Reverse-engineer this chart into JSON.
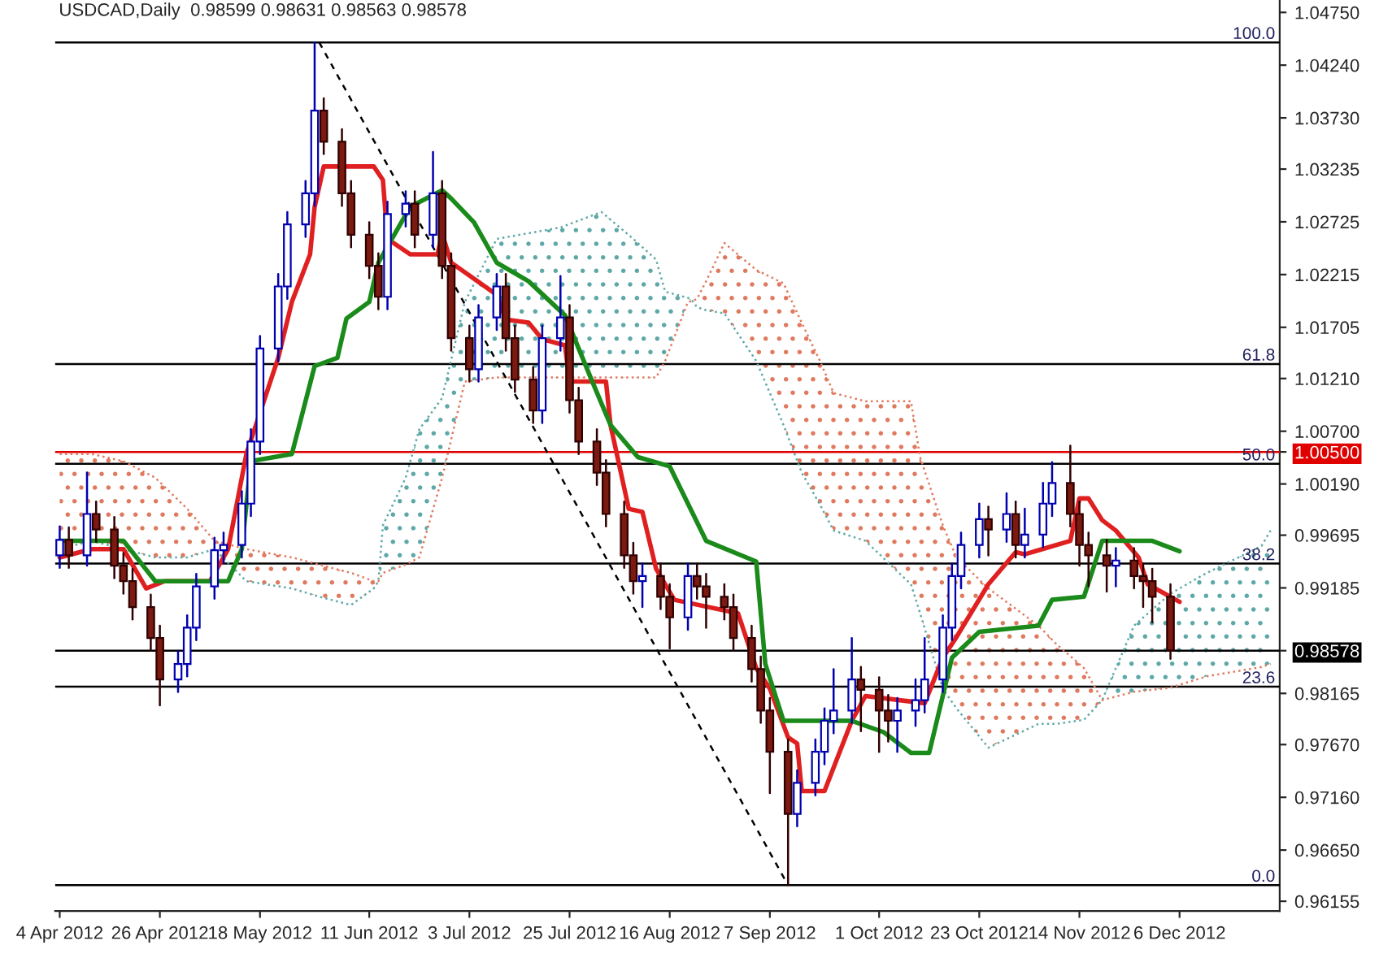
{
  "chart_data": {
    "type": "candlestick",
    "title": "USDCAD,Daily  0.98599 0.98631 0.98563 0.98578",
    "x": [
      "2012-04-04",
      "2012-04-06",
      "2012-04-10",
      "2012-04-12",
      "2012-04-16",
      "2012-04-18",
      "2012-04-20",
      "2012-04-24",
      "2012-04-26",
      "2012-04-30",
      "2012-05-02",
      "2012-05-04",
      "2012-05-08",
      "2012-05-10",
      "2012-05-14",
      "2012-05-16",
      "2012-05-18",
      "2012-05-22",
      "2012-05-24",
      "2012-05-28",
      "2012-05-30",
      "2012-06-01",
      "2012-06-05",
      "2012-06-07",
      "2012-06-11",
      "2012-06-13",
      "2012-06-15",
      "2012-06-19",
      "2012-06-21",
      "2012-06-25",
      "2012-06-27",
      "2012-06-29",
      "2012-07-03",
      "2012-07-05",
      "2012-07-09",
      "2012-07-11",
      "2012-07-13",
      "2012-07-17",
      "2012-07-19",
      "2012-07-23",
      "2012-07-25",
      "2012-07-27",
      "2012-07-31",
      "2012-08-02",
      "2012-08-06",
      "2012-08-08",
      "2012-08-10",
      "2012-08-14",
      "2012-08-16",
      "2012-08-20",
      "2012-08-22",
      "2012-08-24",
      "2012-08-28",
      "2012-08-30",
      "2012-09-03",
      "2012-09-05",
      "2012-09-07",
      "2012-09-11",
      "2012-09-13",
      "2012-09-17",
      "2012-09-19",
      "2012-09-21",
      "2012-09-25",
      "2012-09-27",
      "2012-10-01",
      "2012-10-03",
      "2012-10-05",
      "2012-10-09",
      "2012-10-11",
      "2012-10-15",
      "2012-10-17",
      "2012-10-19",
      "2012-10-23",
      "2012-10-25",
      "2012-10-29",
      "2012-10-31",
      "2012-11-02",
      "2012-11-06",
      "2012-11-08",
      "2012-11-12",
      "2012-11-14",
      "2012-11-16",
      "2012-11-20",
      "2012-11-22",
      "2012-11-26",
      "2012-11-28",
      "2012-11-30",
      "2012-12-04"
    ],
    "ohlc": [
      [
        0.995,
        0.9978,
        0.9938,
        0.9965
      ],
      [
        0.9965,
        0.9977,
        0.9938,
        0.995
      ],
      [
        0.995,
        1.003,
        0.994,
        0.999
      ],
      [
        0.999,
        1.0002,
        0.9963,
        0.9975
      ],
      [
        0.9975,
        0.9987,
        0.9928,
        0.994
      ],
      [
        0.994,
        0.9952,
        0.9913,
        0.9925
      ],
      [
        0.9925,
        0.9937,
        0.9888,
        0.99
      ],
      [
        0.99,
        0.9912,
        0.9858,
        0.987
      ],
      [
        0.987,
        0.9882,
        0.9805,
        0.983
      ],
      [
        0.983,
        0.9857,
        0.9818,
        0.9845
      ],
      [
        0.9845,
        0.9892,
        0.9833,
        0.988
      ],
      [
        0.988,
        0.9932,
        0.9868,
        0.992
      ],
      [
        0.992,
        0.9967,
        0.9908,
        0.9955
      ],
      [
        0.9955,
        0.9972,
        0.9943,
        0.996
      ],
      [
        0.996,
        1.0012,
        0.9948,
        1.0
      ],
      [
        1.0,
        1.0072,
        0.9988,
        1.006
      ],
      [
        1.006,
        1.0162,
        1.0048,
        1.015
      ],
      [
        1.015,
        1.0222,
        1.0138,
        1.021
      ],
      [
        1.021,
        1.0282,
        1.0198,
        1.027
      ],
      [
        1.027,
        1.0312,
        1.0258,
        1.03
      ],
      [
        1.03,
        1.0446,
        1.0288,
        1.038
      ],
      [
        1.038,
        1.0392,
        1.0338,
        1.035
      ],
      [
        1.035,
        1.0362,
        1.0288,
        1.03
      ],
      [
        1.03,
        1.0312,
        1.0248,
        1.026
      ],
      [
        1.026,
        1.0272,
        1.0218,
        1.023
      ],
      [
        1.023,
        1.0242,
        1.0188,
        1.02
      ],
      [
        1.02,
        1.0292,
        1.0188,
        1.028
      ],
      [
        1.028,
        1.0302,
        1.0268,
        1.029
      ],
      [
        1.029,
        1.0302,
        1.0248,
        1.026
      ],
      [
        1.026,
        1.034,
        1.0248,
        1.03
      ],
      [
        1.03,
        1.0312,
        1.0218,
        1.023
      ],
      [
        1.023,
        1.0242,
        1.0148,
        1.016
      ],
      [
        1.016,
        1.0172,
        1.0118,
        1.013
      ],
      [
        1.013,
        1.0192,
        1.0118,
        1.018
      ],
      [
        1.018,
        1.0222,
        1.0168,
        1.021
      ],
      [
        1.021,
        1.0222,
        1.0148,
        1.016
      ],
      [
        1.016,
        1.0172,
        1.0108,
        1.012
      ],
      [
        1.012,
        1.0132,
        1.0078,
        1.009
      ],
      [
        1.009,
        1.0172,
        1.0078,
        1.016
      ],
      [
        1.016,
        1.022,
        1.0148,
        1.018
      ],
      [
        1.018,
        1.0192,
        1.0088,
        1.01
      ],
      [
        1.01,
        1.0112,
        1.0048,
        1.006
      ],
      [
        1.006,
        1.0072,
        1.0018,
        1.003
      ],
      [
        1.003,
        1.0042,
        0.9978,
        0.999
      ],
      [
        0.999,
        1.0002,
        0.9938,
        0.995
      ],
      [
        0.995,
        0.9962,
        0.9913,
        0.9925
      ],
      [
        0.9925,
        0.9942,
        0.99,
        0.993
      ],
      [
        0.993,
        0.9942,
        0.9898,
        0.991
      ],
      [
        0.991,
        0.9922,
        0.986,
        0.989
      ],
      [
        0.989,
        0.9942,
        0.9878,
        0.993
      ],
      [
        0.993,
        0.9942,
        0.9908,
        0.992
      ],
      [
        0.992,
        0.9932,
        0.988,
        0.991
      ],
      [
        0.991,
        0.9922,
        0.9888,
        0.99
      ],
      [
        0.99,
        0.9912,
        0.9858,
        0.987
      ],
      [
        0.987,
        0.9882,
        0.9828,
        0.984
      ],
      [
        0.984,
        0.9852,
        0.9788,
        0.98
      ],
      [
        0.98,
        0.9812,
        0.972,
        0.976
      ],
      [
        0.976,
        0.9772,
        0.9631,
        0.97
      ],
      [
        0.97,
        0.9742,
        0.9688,
        0.973
      ],
      [
        0.973,
        0.9772,
        0.9718,
        0.976
      ],
      [
        0.976,
        0.9802,
        0.9748,
        0.979
      ],
      [
        0.979,
        0.984,
        0.9778,
        0.98
      ],
      [
        0.98,
        0.987,
        0.9788,
        0.983
      ],
      [
        0.983,
        0.9842,
        0.978,
        0.982
      ],
      [
        0.982,
        0.9832,
        0.976,
        0.98
      ],
      [
        0.98,
        0.9815,
        0.977,
        0.979
      ],
      [
        0.979,
        0.9812,
        0.976,
        0.98
      ],
      [
        0.98,
        0.983,
        0.9785,
        0.981
      ],
      [
        0.981,
        0.987,
        0.9798,
        0.983
      ],
      [
        0.983,
        0.9892,
        0.9818,
        0.988
      ],
      [
        0.988,
        0.9942,
        0.9868,
        0.993
      ],
      [
        0.993,
        0.9972,
        0.9918,
        0.996
      ],
      [
        0.996,
        1.0,
        0.9948,
        0.9985
      ],
      [
        0.9985,
        0.9997,
        0.995,
        0.9975
      ],
      [
        0.9975,
        1.001,
        0.9963,
        0.999
      ],
      [
        0.999,
        1.0002,
        0.9948,
        0.996
      ],
      [
        0.996,
        0.9995,
        0.9948,
        0.997
      ],
      [
        0.997,
        1.002,
        0.9958,
        1.0
      ],
      [
        1.0,
        1.004,
        0.9988,
        1.002
      ],
      [
        1.002,
        1.0056,
        0.9978,
        0.999
      ],
      [
        0.999,
        1.0002,
        0.994,
        0.996
      ],
      [
        0.996,
        0.9972,
        0.992,
        0.995
      ],
      [
        0.995,
        0.9965,
        0.9915,
        0.994
      ],
      [
        0.994,
        0.9957,
        0.992,
        0.9945
      ],
      [
        0.9945,
        0.9957,
        0.9918,
        0.993
      ],
      [
        0.993,
        0.9942,
        0.99,
        0.9925
      ],
      [
        0.9925,
        0.9937,
        0.9885,
        0.991
      ],
      [
        0.991,
        0.9922,
        0.985,
        0.9858
      ]
    ],
    "series": [
      {
        "type": "line",
        "line_style": "dotted",
        "color": "#5fa8a8",
        "x": [
          "2012-04-04",
          "2012-04-11",
          "2012-04-18",
          "2012-04-25",
          "2012-05-02",
          "2012-05-08",
          "2012-05-15",
          "2012-05-25",
          "2012-05-31",
          "2012-06-07",
          "2012-06-12",
          "2012-06-13",
          "2012-06-14",
          "2012-06-19",
          "2012-06-22",
          "2012-06-27",
          "2012-07-02",
          "2012-07-09",
          "2012-07-23",
          "2012-08-01",
          "2012-08-08",
          "2012-08-13",
          "2012-08-15",
          "2012-08-20",
          "2012-08-21",
          "2012-08-22",
          "2012-08-24",
          "2012-08-28",
          "2012-09-04",
          "2012-09-10",
          "2012-09-14",
          "2012-09-18",
          "2012-09-21",
          "2012-09-28",
          "2012-10-08",
          "2012-10-10",
          "2012-10-15",
          "2012-10-18",
          "2012-10-25",
          "2012-11-05",
          "2012-11-09",
          "2012-11-15",
          "2012-11-19",
          "2012-11-26",
          "2012-12-04",
          "2012-12-12",
          "2012-12-24",
          "2012-12-26"
        ],
        "values": [
          0.9956,
          0.9964,
          0.9956,
          0.9948,
          0.9948,
          0.9956,
          0.9925,
          0.9918,
          0.991,
          0.9902,
          0.9918,
          0.9925,
          0.9979,
          1.0025,
          1.0072,
          1.0102,
          1.0195,
          1.0256,
          1.0267,
          1.0282,
          1.0256,
          1.0236,
          1.0205,
          1.0199,
          1.0196,
          1.019,
          1.0187,
          1.0184,
          1.0138,
          1.0076,
          1.003,
          0.9999,
          0.9974,
          0.9964,
          0.9922,
          0.9894,
          0.9821,
          0.9802,
          0.9764,
          0.9787,
          0.9787,
          0.9791,
          0.981,
          0.9882,
          0.9913,
          0.9933,
          0.9959,
          0.9974
        ],
        "upper": [
          null,
          null,
          null,
          null,
          null,
          null,
          null,
          null,
          null,
          null,
          null,
          0.9925,
          0.9979,
          1.0025,
          1.0072,
          1.0102,
          1.0195,
          1.0256,
          1.0267,
          1.0282,
          1.0256,
          1.0236,
          1.0205,
          1.0199,
          1.0196,
          null,
          null,
          null,
          null,
          null,
          null,
          null,
          null,
          null,
          null,
          null,
          null,
          null,
          null,
          null,
          null,
          null,
          0.981,
          0.9882,
          0.9913,
          0.9933,
          0.9959,
          0.9974
        ],
        "lower": [
          null,
          null,
          null,
          null,
          null,
          null,
          null,
          null,
          null,
          null,
          null,
          0.9925,
          0.9933,
          0.9941,
          0.9948,
          1.0025,
          1.0118,
          1.0122,
          1.0122,
          1.0122,
          1.0122,
          1.0122,
          1.0138,
          1.0195,
          1.0196,
          null,
          null,
          null,
          null,
          null,
          null,
          null,
          null,
          null,
          null,
          null,
          null,
          null,
          null,
          null,
          null,
          null,
          0.981,
          0.9818,
          0.9822,
          0.9833,
          0.9842,
          0.9845
        ]
      },
      {
        "type": "line",
        "line_style": "dotted",
        "color": "#e07a5f",
        "x": [
          "2012-04-04",
          "2012-04-11",
          "2012-04-18",
          "2012-04-25",
          "2012-05-02",
          "2012-05-08",
          "2012-05-15",
          "2012-05-25",
          "2012-05-31",
          "2012-06-07",
          "2012-06-12",
          "2012-06-13",
          "2012-06-14",
          "2012-06-19",
          "2012-06-22",
          "2012-06-27",
          "2012-07-02",
          "2012-07-09",
          "2012-07-23",
          "2012-08-01",
          "2012-08-08",
          "2012-08-13",
          "2012-08-15",
          "2012-08-20",
          "2012-08-21",
          "2012-08-22",
          "2012-08-24",
          "2012-08-28",
          "2012-09-04",
          "2012-09-10",
          "2012-09-14",
          "2012-09-18",
          "2012-09-21",
          "2012-09-28",
          "2012-10-08",
          "2012-10-10",
          "2012-10-15",
          "2012-10-18",
          "2012-10-25",
          "2012-11-05",
          "2012-11-09",
          "2012-11-15",
          "2012-11-19",
          "2012-11-26",
          "2012-12-04",
          "2012-12-12",
          "2012-12-24",
          "2012-12-26"
        ],
        "values": [
          1.0048,
          1.0048,
          1.0041,
          1.0025,
          0.9995,
          0.9964,
          0.9956,
          0.9948,
          0.9941,
          0.9933,
          0.9925,
          0.9925,
          0.9933,
          0.9941,
          0.9948,
          1.0025,
          1.0118,
          1.0122,
          1.0122,
          1.0122,
          1.0122,
          1.0122,
          1.0138,
          1.0195,
          1.0196,
          1.0198,
          1.0215,
          1.0252,
          1.0226,
          1.0213,
          1.0175,
          1.0138,
          1.0107,
          1.0099,
          1.0099,
          1.0045,
          0.9979,
          0.9948,
          0.9918,
          0.9882,
          0.9864,
          0.9841,
          0.981,
          0.9818,
          0.9822,
          0.9833,
          0.9842,
          0.9845
        ],
        "upper": [
          1.0048,
          1.0048,
          1.0041,
          1.0025,
          0.9995,
          0.9964,
          0.9956,
          0.9948,
          0.9941,
          0.9933,
          0.9925,
          0.9925,
          null,
          null,
          null,
          null,
          null,
          null,
          null,
          null,
          null,
          null,
          null,
          null,
          1.0196,
          1.0198,
          1.0215,
          1.0252,
          1.0226,
          1.0213,
          1.0175,
          1.0138,
          1.0107,
          1.0099,
          1.0099,
          1.0045,
          0.9979,
          0.9948,
          0.9918,
          0.9882,
          0.9864,
          0.9841,
          0.981,
          null,
          null,
          null,
          null,
          null
        ],
        "lower": [
          0.9956,
          0.9964,
          0.9956,
          0.9948,
          0.9948,
          0.9956,
          0.9925,
          0.9918,
          0.991,
          0.9902,
          0.9918,
          0.9925,
          null,
          null,
          null,
          null,
          null,
          null,
          null,
          null,
          null,
          null,
          null,
          null,
          1.0196,
          1.019,
          1.0187,
          1.0184,
          1.0138,
          1.0076,
          1.003,
          0.9999,
          0.9974,
          0.9964,
          0.9922,
          0.9894,
          0.9821,
          0.9802,
          0.9764,
          0.9787,
          0.9787,
          0.9791,
          0.981,
          null,
          null,
          null,
          null,
          null
        ]
      },
      {
        "type": "line",
        "color": "#e02020",
        "line_style": "solid",
        "x": [
          "2012-04-04",
          "2012-04-11",
          "2012-04-18",
          "2012-04-23",
          "2012-04-27",
          "2012-05-07",
          "2012-05-11",
          "2012-05-15",
          "2012-05-22",
          "2012-05-25",
          "2012-05-29",
          "2012-05-30",
          "2012-06-01",
          "2012-06-12",
          "2012-06-14",
          "2012-06-15",
          "2012-06-20",
          "2012-06-26",
          "2012-06-27",
          "2012-06-29",
          "2012-07-09",
          "2012-07-11",
          "2012-07-16",
          "2012-07-19",
          "2012-07-24",
          "2012-07-25",
          "2012-07-30",
          "2012-08-02",
          "2012-08-03",
          "2012-08-07",
          "2012-08-10",
          "2012-08-13",
          "2012-08-17",
          "2012-08-31",
          "2012-09-04",
          "2012-09-07",
          "2012-09-11",
          "2012-09-13",
          "2012-09-14",
          "2012-09-19",
          "2012-09-25",
          "2012-09-28",
          "2012-10-11",
          "2012-10-15",
          "2012-10-18",
          "2012-10-25",
          "2012-10-31",
          "2012-11-02",
          "2012-11-12",
          "2012-11-14",
          "2012-11-16",
          "2012-11-19",
          "2012-11-22",
          "2012-11-27",
          "2012-11-29",
          "2012-12-06"
        ],
        "values": [
          0.9948,
          0.9956,
          0.9956,
          0.9918,
          0.9925,
          0.9925,
          0.9956,
          1.0048,
          1.0141,
          1.0195,
          1.0241,
          1.0287,
          1.0326,
          1.0326,
          1.0313,
          1.0256,
          1.0241,
          1.0241,
          1.0261,
          1.0233,
          1.0202,
          1.0178,
          1.0175,
          1.0159,
          1.0153,
          1.0118,
          1.0118,
          1.0118,
          1.0076,
          0.9995,
          0.9992,
          0.9937,
          0.9907,
          0.9894,
          0.9841,
          0.9821,
          0.9774,
          0.9768,
          0.9722,
          0.9722,
          0.979,
          0.9814,
          0.9807,
          0.9851,
          0.9871,
          0.9922,
          0.9953,
          0.9951,
          0.9964,
          1.0005,
          1.0005,
          0.9984,
          0.9974,
          0.9948,
          0.9922,
          0.9905
        ]
      },
      {
        "type": "line",
        "color": "#1a8a1a",
        "line_style": "solid",
        "x": [
          "2012-04-04",
          "2012-04-18",
          "2012-04-25",
          "2012-05-11",
          "2012-05-14",
          "2012-05-16",
          "2012-05-25",
          "2012-05-30",
          "2012-06-04",
          "2012-06-06",
          "2012-06-11",
          "2012-06-13",
          "2012-06-20",
          "2012-06-27",
          "2012-06-29",
          "2012-07-04",
          "2012-07-09",
          "2012-07-16",
          "2012-07-24",
          "2012-07-30",
          "2012-08-03",
          "2012-08-09",
          "2012-08-16",
          "2012-08-24",
          "2012-09-04",
          "2012-09-06",
          "2012-09-10",
          "2012-09-25",
          "2012-10-02",
          "2012-10-08",
          "2012-10-12",
          "2012-10-17",
          "2012-10-23",
          "2012-11-05",
          "2012-11-08",
          "2012-11-15",
          "2012-11-19",
          "2012-11-30",
          "2012-12-06"
        ],
        "values": [
          0.9964,
          0.9964,
          0.9925,
          0.9925,
          0.9956,
          1.0041,
          1.0048,
          1.0133,
          1.0141,
          1.0179,
          1.0195,
          1.0233,
          1.0287,
          1.0303,
          1.0295,
          1.0272,
          1.0233,
          1.0215,
          1.0182,
          1.0118,
          1.0076,
          1.0045,
          1.0036,
          0.9964,
          0.9944,
          0.9845,
          0.979,
          0.979,
          0.9779,
          0.9759,
          0.9759,
          0.9851,
          0.9876,
          0.9882,
          0.9907,
          0.991,
          0.9964,
          0.9964,
          0.9954
        ]
      },
      {
        "type": "line",
        "color": "#000000",
        "line_style": "dashed",
        "x": [
          "2012-05-31",
          "2012-09-11"
        ],
        "values": [
          1.0446,
          0.9631
        ]
      }
    ],
    "ref_lines": [
      {
        "axis": "y",
        "value": 1.0446,
        "color": "#000000"
      },
      {
        "axis": "y",
        "value": 1.0135,
        "color": "#000000"
      },
      {
        "axis": "y",
        "value": 1.00385,
        "color": "#000000"
      },
      {
        "axis": "y",
        "value": 0.9942,
        "color": "#000000"
      },
      {
        "axis": "y",
        "value": 0.9823,
        "color": "#000000"
      },
      {
        "axis": "y",
        "value": 0.9631,
        "color": "#000000"
      },
      {
        "axis": "y",
        "value": 1.005,
        "color": "#e00000"
      },
      {
        "axis": "y",
        "value": 0.98578,
        "color": "#000000"
      }
    ],
    "annotations": [
      {
        "text": "100.0",
        "x": "2012-12-27",
        "y": 1.0446
      },
      {
        "text": "61.8",
        "x": "2012-12-27",
        "y": 1.0135
      },
      {
        "text": "50.0",
        "x": "2012-12-27",
        "y": 1.00385
      },
      {
        "text": "38.2",
        "x": "2012-12-27",
        "y": 0.9942
      },
      {
        "text": "23.6",
        "x": "2012-12-27",
        "y": 0.9823
      },
      {
        "text": "0.0",
        "x": "2012-12-27",
        "y": 0.9631
      }
    ],
    "xlim": [
      "2012-04-03",
      "2012-12-28"
    ],
    "xticks": [
      {
        "value": "2012-04-04",
        "label": "4 Apr 2012"
      },
      {
        "value": "2012-04-26",
        "label": "26 Apr 2012"
      },
      {
        "value": "2012-05-18",
        "label": "18 May 2012"
      },
      {
        "value": "2012-06-11",
        "label": "11 Jun 2012"
      },
      {
        "value": "2012-07-03",
        "label": "3 Jul 2012"
      },
      {
        "value": "2012-07-25",
        "label": "25 Jul 2012"
      },
      {
        "value": "2012-08-16",
        "label": "16 Aug 2012"
      },
      {
        "value": "2012-09-07",
        "label": "7 Sep 2012"
      },
      {
        "value": "2012-10-01",
        "label": "1 Oct 2012"
      },
      {
        "value": "2012-10-23",
        "label": "23 Oct 2012"
      },
      {
        "value": "2012-11-14",
        "label": "14 Nov 2012"
      },
      {
        "value": "2012-12-06",
        "label": "6 Dec 2012"
      }
    ],
    "ylim": [
      0.9606,
      1.0487
    ],
    "yticks": [
      {
        "value": 1.0475,
        "label": "1.04750"
      },
      {
        "value": 1.0424,
        "label": "1.04240"
      },
      {
        "value": 1.0373,
        "label": "1.03730"
      },
      {
        "value": 1.03235,
        "label": "1.03235"
      },
      {
        "value": 1.02725,
        "label": "1.02725"
      },
      {
        "value": 1.02215,
        "label": "1.02215"
      },
      {
        "value": 1.01705,
        "label": "1.01705"
      },
      {
        "value": 1.0121,
        "label": "1.01210"
      },
      {
        "value": 1.007,
        "label": "1.00700"
      },
      {
        "value": 1.005,
        "label": "1.00500"
      },
      {
        "value": 1.0019,
        "label": "1.00190"
      },
      {
        "value": 0.99695,
        "label": "0.99695"
      },
      {
        "value": 0.99185,
        "label": "0.99185"
      },
      {
        "value": 0.98578,
        "label": "0.98578"
      },
      {
        "value": 0.98165,
        "label": "0.98165"
      },
      {
        "value": 0.9767,
        "label": "0.97670"
      },
      {
        "value": 0.9716,
        "label": "0.97160"
      },
      {
        "value": 0.9665,
        "label": "0.96650"
      },
      {
        "value": 0.96155,
        "label": "0.96155"
      }
    ],
    "grid": false,
    "legend": false
  }
}
